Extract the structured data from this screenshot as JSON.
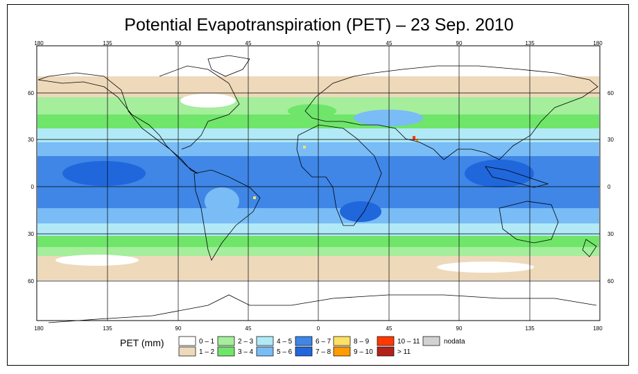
{
  "title": "Potential Evapotranspiration (PET) – 23 Sep. 2010",
  "axes": {
    "longitude_ticks": [
      "180",
      "135",
      "90",
      "45",
      "0",
      "45",
      "90",
      "135",
      "180"
    ],
    "latitude_ticks": [
      "60",
      "30",
      "0",
      "30",
      "60"
    ]
  },
  "legend": {
    "title": "PET (mm)",
    "items": [
      {
        "label": "0 – 1",
        "color": "#ffffff"
      },
      {
        "label": "1 – 2",
        "color": "#eed9bb"
      },
      {
        "label": "2 – 3",
        "color": "#a5ee9c"
      },
      {
        "label": "3 – 4",
        "color": "#6fe56a"
      },
      {
        "label": "4 – 5",
        "color": "#b1e9f7"
      },
      {
        "label": "5 – 6",
        "color": "#79bcf6"
      },
      {
        "label": "6 – 7",
        "color": "#3f86e6"
      },
      {
        "label": "7 – 8",
        "color": "#2067dc"
      },
      {
        "label": "8 – 9",
        "color": "#ffe066"
      },
      {
        "label": "9 – 10",
        "color": "#ff9b00"
      },
      {
        "label": "10 – 11",
        "color": "#ff3a00"
      },
      {
        "label": "> 11",
        "color": "#b1221a"
      },
      {
        "label": "nodata",
        "color": "#d2d2d2"
      }
    ]
  }
}
